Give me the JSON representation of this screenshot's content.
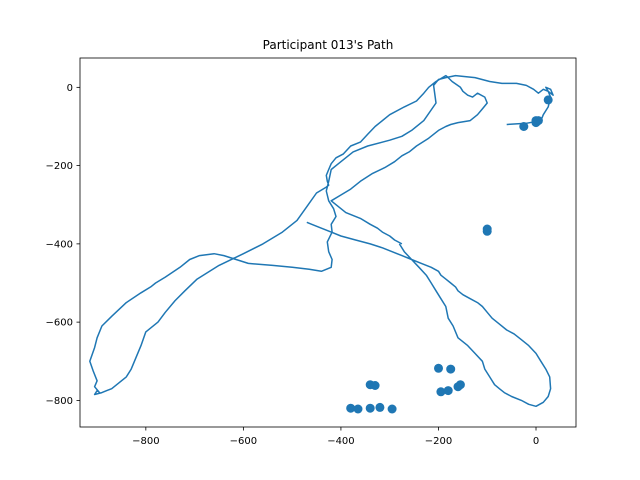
{
  "chart_data": {
    "type": "line",
    "title": "Participant 013's Path",
    "xlabel": "",
    "ylabel": "",
    "xlim": [
      -935,
      82
    ],
    "ylim": [
      -868,
      75
    ],
    "xticks": [
      -800,
      -600,
      -400,
      -200,
      0
    ],
    "yticks": [
      0,
      -200,
      -400,
      -600,
      -800
    ],
    "xtick_labels": [
      "−800",
      "−600",
      "−400",
      "−200",
      "0"
    ],
    "ytick_labels": [
      "0",
      "−200",
      "−400",
      "−600",
      "−800"
    ],
    "grid": false,
    "line_color": "#1f77b4",
    "marker_color": "#1f77b4",
    "series": [
      {
        "x": [
          -60,
          -20,
          10,
          15,
          25,
          30,
          25,
          20,
          30,
          35,
          25,
          15,
          5,
          -5,
          -20,
          -40,
          -70,
          -95,
          -125,
          -165,
          -185,
          -200,
          -210,
          -205,
          -230,
          -255,
          -275,
          -300,
          -345,
          -375,
          -400,
          -420,
          -425,
          -430,
          -425,
          -415,
          -410,
          -420,
          -418,
          -428,
          -425,
          -418,
          -420,
          -440,
          -465,
          -500,
          -540,
          -590,
          -640,
          -660,
          -690,
          -710,
          -730,
          -760,
          -780,
          -790,
          -810,
          -840,
          -870,
          -890,
          -900,
          -905,
          -915,
          -908,
          -900,
          -905,
          -895,
          -900,
          -905,
          -890,
          -880,
          -870,
          -855,
          -840,
          -830,
          -820,
          -810,
          -800,
          -775,
          -760,
          -740,
          -720,
          -695,
          -650,
          -600,
          -560,
          -520,
          -490,
          -470,
          -450,
          -430,
          -425,
          -428,
          -430,
          -425,
          -420,
          -410,
          -395,
          -380,
          -360,
          -345,
          -330,
          -300,
          -270,
          -245,
          -230,
          -220,
          -205,
          -185,
          -180,
          -172,
          -155,
          -150,
          -140,
          -130,
          -120,
          -105,
          -100,
          -110,
          -120,
          -135,
          -160,
          -175,
          -185,
          -200,
          -220,
          -245,
          -260,
          -275,
          -290,
          -310,
          -335,
          -360,
          -380,
          -400,
          -420,
          -405,
          -390,
          -360,
          -340,
          -325,
          -315,
          -300,
          -290,
          -275
        ],
        "y": [
          -95,
          -92,
          -85,
          -70,
          -50,
          -25,
          -10,
          0,
          -5,
          -20,
          -10,
          -5,
          -15,
          -5,
          5,
          10,
          10,
          15,
          25,
          30,
          25,
          20,
          5,
          -40,
          -85,
          -110,
          -125,
          -135,
          -150,
          -165,
          -190,
          -210,
          -240,
          -265,
          -290,
          -310,
          -330,
          -350,
          -370,
          -395,
          -420,
          -440,
          -460,
          -470,
          -465,
          -460,
          -455,
          -450,
          -430,
          -425,
          -430,
          -440,
          -460,
          -485,
          -500,
          -510,
          -525,
          -550,
          -585,
          -610,
          -640,
          -665,
          -700,
          -725,
          -750,
          -765,
          -780,
          -775,
          -785,
          -780,
          -775,
          -770,
          -755,
          -740,
          -720,
          -690,
          -660,
          -625,
          -600,
          -575,
          -545,
          -520,
          -490,
          -455,
          -425,
          -400,
          -370,
          -340,
          -305,
          -270,
          -255,
          -250,
          -240,
          -225,
          -210,
          -195,
          -180,
          -170,
          -150,
          -140,
          -120,
          -100,
          -70,
          -50,
          -35,
          -15,
          0,
          15,
          30,
          25,
          15,
          0,
          -10,
          -20,
          -25,
          -15,
          -25,
          -40,
          -55,
          -70,
          -85,
          -90,
          -95,
          -100,
          -110,
          -130,
          -150,
          -165,
          -175,
          -190,
          -205,
          -220,
          -240,
          -260,
          -275,
          -290,
          -305,
          -320,
          -335,
          -350,
          -360,
          -370,
          -380,
          -390,
          -400
        ]
      },
      {
        "x": [
          -280,
          -270,
          -255,
          -240,
          -225,
          -215,
          -205,
          -195,
          -185,
          -180,
          -170,
          -160,
          -140,
          -125,
          -110,
          -105,
          -95,
          -85,
          -75,
          -65,
          -50,
          -30,
          -15,
          0,
          15,
          25,
          30,
          28,
          20,
          10,
          0,
          -15,
          -30,
          -45,
          -60,
          -75,
          -90,
          -100,
          -110,
          -120,
          -135,
          -150,
          -160,
          -165,
          -175,
          -185,
          -195,
          -200,
          -215,
          -235,
          -255,
          -275,
          -295,
          -315,
          -340,
          -370,
          -400,
          -420,
          -440,
          -460,
          -470
        ],
        "y": [
          -400,
          -420,
          -440,
          -460,
          -480,
          -500,
          -520,
          -540,
          -560,
          -590,
          -610,
          -640,
          -660,
          -680,
          -700,
          -720,
          -740,
          -760,
          -770,
          -780,
          -790,
          -800,
          -810,
          -815,
          -805,
          -790,
          -770,
          -740,
          -720,
          -700,
          -680,
          -660,
          -645,
          -630,
          -620,
          -605,
          -590,
          -575,
          -560,
          -550,
          -540,
          -530,
          -520,
          -510,
          -500,
          -490,
          -480,
          -470,
          -460,
          -450,
          -440,
          -430,
          -420,
          -410,
          -400,
          -390,
          -380,
          -370,
          -360,
          -350,
          -345
        ]
      }
    ],
    "markers": {
      "x": [
        -380,
        -365,
        -340,
        -320,
        -295,
        -340,
        -330,
        -200,
        -195,
        -180,
        -175,
        -160,
        -155,
        -100,
        -100,
        0,
        0,
        5,
        -25,
        25
      ],
      "y": [
        -820,
        -822,
        -820,
        -818,
        -822,
        -760,
        -762,
        -718,
        -778,
        -775,
        -720,
        -765,
        -760,
        -362,
        -368,
        -85,
        -90,
        -85,
        -100,
        -32
      ]
    }
  }
}
